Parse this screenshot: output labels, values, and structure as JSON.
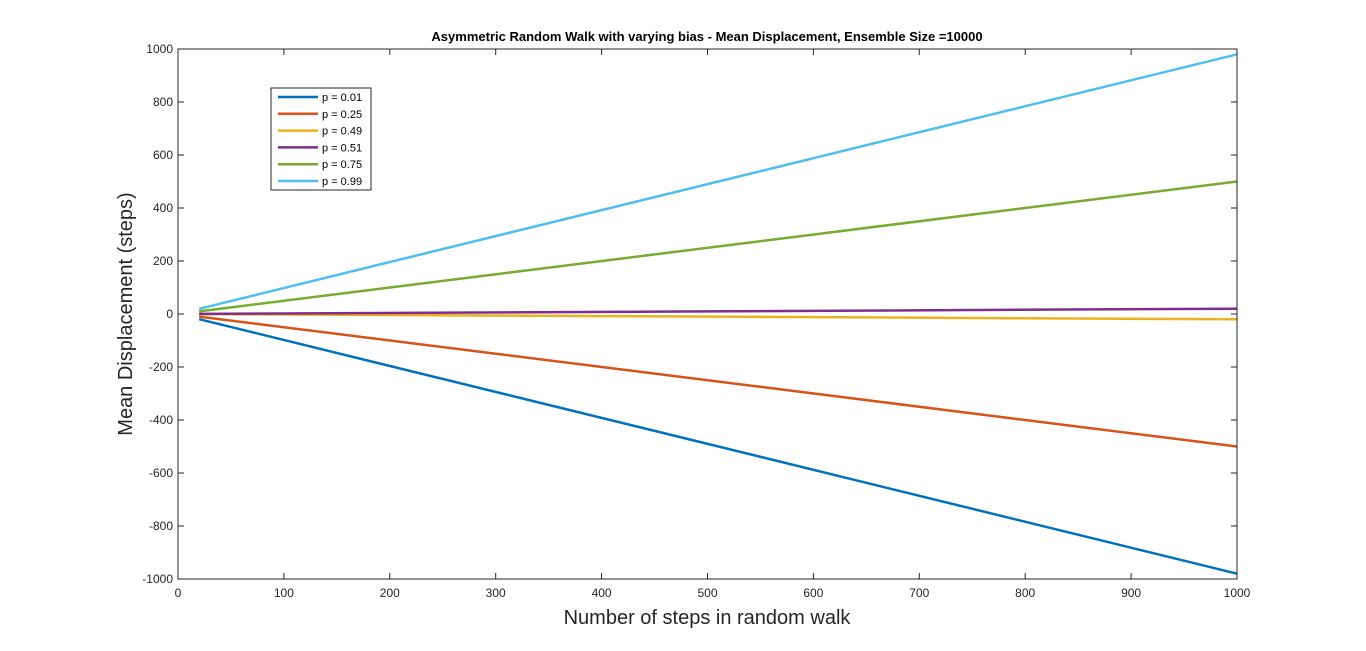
{
  "chart_data": {
    "type": "line",
    "title": "Asymmetric Random Walk with varying bias - Mean Displacement,  Ensemble Size =10000",
    "xlabel": "Number of steps in random walk",
    "ylabel": "Mean Displacement (steps)",
    "xlim": [
      0,
      1000
    ],
    "ylim": [
      -1000,
      1000
    ],
    "xticks": [
      0,
      100,
      200,
      300,
      400,
      500,
      600,
      700,
      800,
      900,
      1000
    ],
    "yticks": [
      -1000,
      -800,
      -600,
      -400,
      -200,
      0,
      200,
      400,
      600,
      800,
      1000
    ],
    "xtick_labels": [
      "0",
      "100",
      "200",
      "300",
      "400",
      "500",
      "600",
      "700",
      "800",
      "900",
      "1000"
    ],
    "ytick_labels": [
      "-1000",
      "-800",
      "-600",
      "-400",
      "-200",
      "0",
      "200",
      "400",
      "600",
      "800",
      "1000"
    ],
    "grid": false,
    "legend_position": "top-left",
    "series": [
      {
        "name": "p = 0.01",
        "color": "#0072BD",
        "x": [
          20,
          1000
        ],
        "y": [
          -19.6,
          -980
        ]
      },
      {
        "name": "p = 0.25",
        "color": "#D95319",
        "x": [
          20,
          1000
        ],
        "y": [
          -10,
          -500
        ]
      },
      {
        "name": "p = 0.49",
        "color": "#EDB120",
        "x": [
          20,
          1000
        ],
        "y": [
          -0.4,
          -20
        ]
      },
      {
        "name": "p = 0.51",
        "color": "#7E2F8E",
        "x": [
          20,
          1000
        ],
        "y": [
          0.4,
          20
        ]
      },
      {
        "name": "p = 0.75",
        "color": "#77AC30",
        "x": [
          20,
          1000
        ],
        "y": [
          10,
          500
        ]
      },
      {
        "name": "p = 0.99",
        "color": "#4DBEEE",
        "x": [
          20,
          1000
        ],
        "y": [
          19.6,
          980
        ]
      }
    ]
  }
}
